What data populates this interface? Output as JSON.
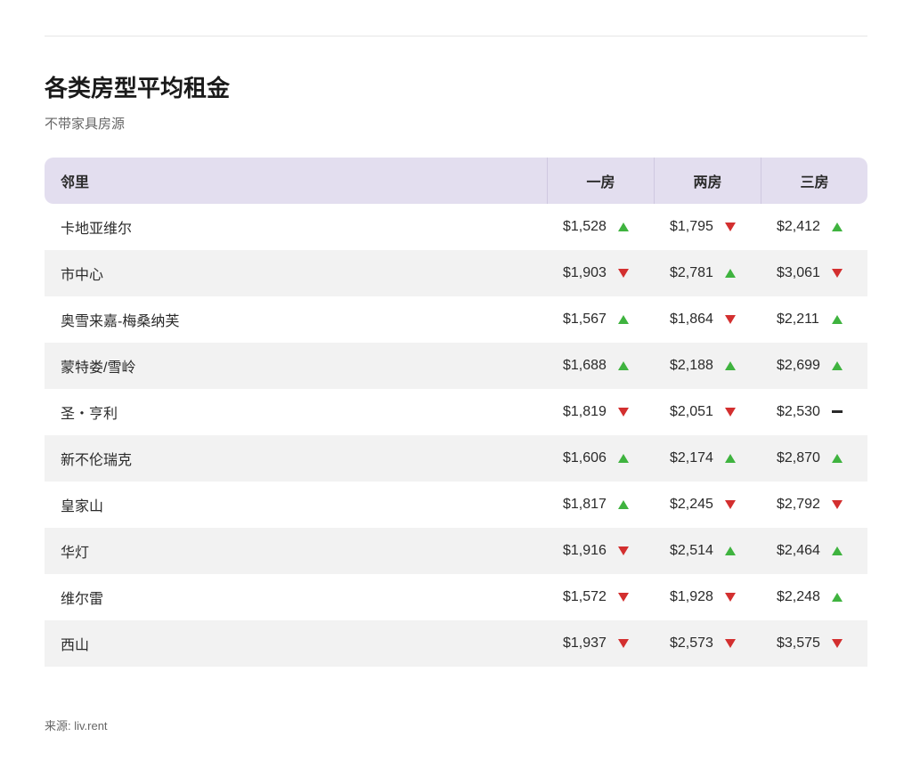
{
  "title": "各类房型平均租金",
  "subtitle": "不带家具房源",
  "source": "来源: liv.rent",
  "colors": {
    "header_bg": "#e3deef",
    "row_even_bg": "#f2f2f2",
    "row_odd_bg": "#ffffff",
    "trend_up": "#3fb33f",
    "trend_down": "#d32f2f",
    "trend_flat": "#2a2a2a",
    "text": "#2a2a2a",
    "subtext": "#666666"
  },
  "table": {
    "columns": [
      "邻里",
      "一房",
      "两房",
      "三房"
    ],
    "rows": [
      {
        "name": "卡地亚维尔",
        "r1": {
          "v": "$1,528",
          "t": "up"
        },
        "r2": {
          "v": "$1,795",
          "t": "down"
        },
        "r3": {
          "v": "$2,412",
          "t": "up"
        }
      },
      {
        "name": "市中心",
        "r1": {
          "v": "$1,903",
          "t": "down"
        },
        "r2": {
          "v": "$2,781",
          "t": "up"
        },
        "r3": {
          "v": "$3,061",
          "t": "down"
        }
      },
      {
        "name": "奥雪来嘉-梅桑纳芙",
        "r1": {
          "v": "$1,567",
          "t": "up"
        },
        "r2": {
          "v": "$1,864",
          "t": "down"
        },
        "r3": {
          "v": "$2,211",
          "t": "up"
        }
      },
      {
        "name": "蒙特娄/雪岭",
        "r1": {
          "v": "$1,688",
          "t": "up"
        },
        "r2": {
          "v": "$2,188",
          "t": "up"
        },
        "r3": {
          "v": "$2,699",
          "t": "up"
        }
      },
      {
        "name": "圣・亨利",
        "r1": {
          "v": "$1,819",
          "t": "down"
        },
        "r2": {
          "v": "$2,051",
          "t": "down"
        },
        "r3": {
          "v": "$2,530",
          "t": "flat"
        }
      },
      {
        "name": "新不伦瑞克",
        "r1": {
          "v": "$1,606",
          "t": "up"
        },
        "r2": {
          "v": "$2,174",
          "t": "up"
        },
        "r3": {
          "v": "$2,870",
          "t": "up"
        }
      },
      {
        "name": "皇家山",
        "r1": {
          "v": "$1,817",
          "t": "up"
        },
        "r2": {
          "v": "$2,245",
          "t": "down"
        },
        "r3": {
          "v": "$2,792",
          "t": "down"
        }
      },
      {
        "name": "华灯",
        "r1": {
          "v": "$1,916",
          "t": "down"
        },
        "r2": {
          "v": "$2,514",
          "t": "up"
        },
        "r3": {
          "v": "$2,464",
          "t": "up"
        }
      },
      {
        "name": "维尔雷",
        "r1": {
          "v": "$1,572",
          "t": "down"
        },
        "r2": {
          "v": "$1,928",
          "t": "down"
        },
        "r3": {
          "v": "$2,248",
          "t": "up"
        }
      },
      {
        "name": "西山",
        "r1": {
          "v": "$1,937",
          "t": "down"
        },
        "r2": {
          "v": "$2,573",
          "t": "down"
        },
        "r3": {
          "v": "$3,575",
          "t": "down"
        }
      }
    ]
  }
}
